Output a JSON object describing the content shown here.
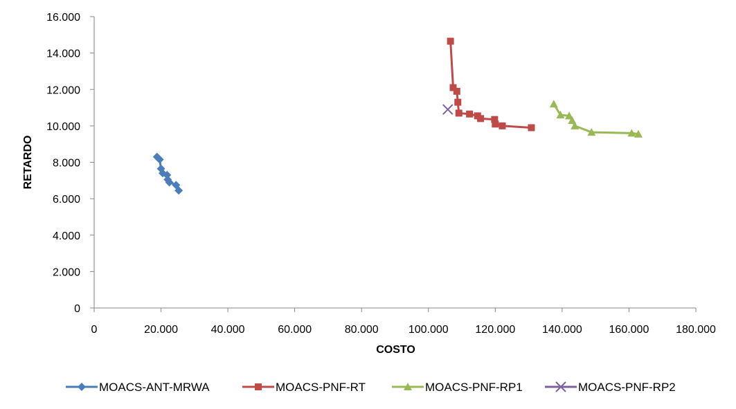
{
  "chart_data": {
    "type": "line",
    "xlabel": "COSTO",
    "ylabel": "RETARDO",
    "xlim": [
      0,
      180000
    ],
    "ylim": [
      0,
      16000
    ],
    "x_ticks": [
      {
        "value": 0,
        "label": "0"
      },
      {
        "value": 20000,
        "label": "20.000"
      },
      {
        "value": 40000,
        "label": "40.000"
      },
      {
        "value": 60000,
        "label": "60.000"
      },
      {
        "value": 80000,
        "label": "80.000"
      },
      {
        "value": 100000,
        "label": "100.000"
      },
      {
        "value": 120000,
        "label": "120.000"
      },
      {
        "value": 140000,
        "label": "140.000"
      },
      {
        "value": 160000,
        "label": "160.000"
      },
      {
        "value": 180000,
        "label": "180.000"
      }
    ],
    "y_ticks": [
      {
        "value": 0,
        "label": "0"
      },
      {
        "value": 2000,
        "label": "2.000"
      },
      {
        "value": 4000,
        "label": "4.000"
      },
      {
        "value": 6000,
        "label": "6.000"
      },
      {
        "value": 8000,
        "label": "8.000"
      },
      {
        "value": 10000,
        "label": "10.000"
      },
      {
        "value": 12000,
        "label": "12.000"
      },
      {
        "value": 14000,
        "label": "14.000"
      },
      {
        "value": 16000,
        "label": "16.000"
      }
    ],
    "grid": false,
    "legend_position": "bottom",
    "series": [
      {
        "name": "MOACS-ANT-MRWA",
        "color": "#4a7ebb",
        "marker": "diamond",
        "points": [
          [
            18800,
            8300
          ],
          [
            19600,
            8150
          ],
          [
            20000,
            7650
          ],
          [
            20500,
            7400
          ],
          [
            21800,
            7300
          ],
          [
            22000,
            7050
          ],
          [
            22500,
            6900
          ],
          [
            24500,
            6750
          ],
          [
            25300,
            6450
          ]
        ]
      },
      {
        "name": "MOACS-PNF-RT",
        "color": "#be4b48",
        "marker": "square",
        "points": [
          [
            106600,
            14650
          ],
          [
            107400,
            12100
          ],
          [
            108500,
            11900
          ],
          [
            108800,
            11300
          ],
          [
            109100,
            10700
          ],
          [
            112300,
            10650
          ],
          [
            114700,
            10550
          ],
          [
            115600,
            10400
          ],
          [
            119800,
            10350
          ],
          [
            120000,
            10100
          ],
          [
            122100,
            10000
          ],
          [
            130800,
            9900
          ]
        ]
      },
      {
        "name": "MOACS-PNF-RP1",
        "color": "#98b954",
        "marker": "triangle",
        "points": [
          [
            137500,
            11200
          ],
          [
            139500,
            10600
          ],
          [
            142100,
            10550
          ],
          [
            143000,
            10300
          ],
          [
            143800,
            10000
          ],
          [
            148800,
            9650
          ],
          [
            160800,
            9600
          ],
          [
            162800,
            9550
          ]
        ]
      },
      {
        "name": "MOACS-PNF-RP2",
        "color": "#7d60a0",
        "marker": "x",
        "points": [
          [
            105800,
            10900
          ]
        ]
      }
    ]
  }
}
